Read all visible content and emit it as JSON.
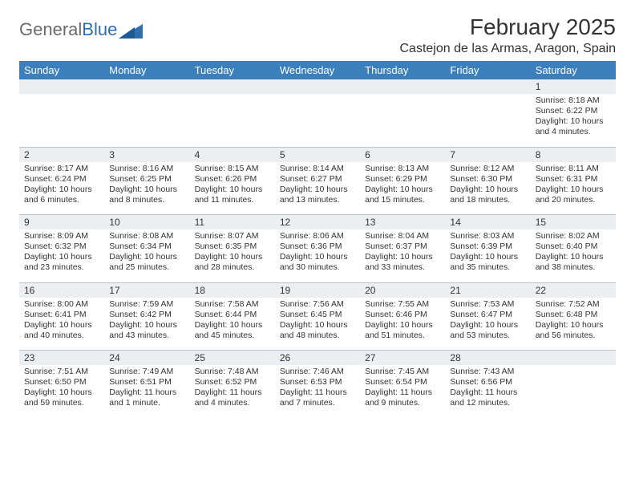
{
  "logo": {
    "word1": "General",
    "word2": "Blue"
  },
  "title": "February 2025",
  "subtitle": "Castejon de las Armas, Aragon, Spain",
  "colors": {
    "header_bg": "#3b7fbd",
    "header_text": "#ffffff",
    "daynum_bg": "#eceff1",
    "text": "#333333",
    "grid_line": "#b8c4cc",
    "logo_gray": "#6a6a6a",
    "logo_blue": "#2f6fb0",
    "background": "#ffffff"
  },
  "typography": {
    "title_fontsize": 28,
    "subtitle_fontsize": 16,
    "weekday_fontsize": 13,
    "daynum_fontsize": 12,
    "body_fontsize": 10.5
  },
  "weekdays": [
    "Sunday",
    "Monday",
    "Tuesday",
    "Wednesday",
    "Thursday",
    "Friday",
    "Saturday"
  ],
  "first_weekday_index": 6,
  "days": [
    {
      "n": 1,
      "sunrise": "8:18 AM",
      "sunset": "6:22 PM",
      "daylight": "10 hours and 4 minutes."
    },
    {
      "n": 2,
      "sunrise": "8:17 AM",
      "sunset": "6:24 PM",
      "daylight": "10 hours and 6 minutes."
    },
    {
      "n": 3,
      "sunrise": "8:16 AM",
      "sunset": "6:25 PM",
      "daylight": "10 hours and 8 minutes."
    },
    {
      "n": 4,
      "sunrise": "8:15 AM",
      "sunset": "6:26 PM",
      "daylight": "10 hours and 11 minutes."
    },
    {
      "n": 5,
      "sunrise": "8:14 AM",
      "sunset": "6:27 PM",
      "daylight": "10 hours and 13 minutes."
    },
    {
      "n": 6,
      "sunrise": "8:13 AM",
      "sunset": "6:29 PM",
      "daylight": "10 hours and 15 minutes."
    },
    {
      "n": 7,
      "sunrise": "8:12 AM",
      "sunset": "6:30 PM",
      "daylight": "10 hours and 18 minutes."
    },
    {
      "n": 8,
      "sunrise": "8:11 AM",
      "sunset": "6:31 PM",
      "daylight": "10 hours and 20 minutes."
    },
    {
      "n": 9,
      "sunrise": "8:09 AM",
      "sunset": "6:32 PM",
      "daylight": "10 hours and 23 minutes."
    },
    {
      "n": 10,
      "sunrise": "8:08 AM",
      "sunset": "6:34 PM",
      "daylight": "10 hours and 25 minutes."
    },
    {
      "n": 11,
      "sunrise": "8:07 AM",
      "sunset": "6:35 PM",
      "daylight": "10 hours and 28 minutes."
    },
    {
      "n": 12,
      "sunrise": "8:06 AM",
      "sunset": "6:36 PM",
      "daylight": "10 hours and 30 minutes."
    },
    {
      "n": 13,
      "sunrise": "8:04 AM",
      "sunset": "6:37 PM",
      "daylight": "10 hours and 33 minutes."
    },
    {
      "n": 14,
      "sunrise": "8:03 AM",
      "sunset": "6:39 PM",
      "daylight": "10 hours and 35 minutes."
    },
    {
      "n": 15,
      "sunrise": "8:02 AM",
      "sunset": "6:40 PM",
      "daylight": "10 hours and 38 minutes."
    },
    {
      "n": 16,
      "sunrise": "8:00 AM",
      "sunset": "6:41 PM",
      "daylight": "10 hours and 40 minutes."
    },
    {
      "n": 17,
      "sunrise": "7:59 AM",
      "sunset": "6:42 PM",
      "daylight": "10 hours and 43 minutes."
    },
    {
      "n": 18,
      "sunrise": "7:58 AM",
      "sunset": "6:44 PM",
      "daylight": "10 hours and 45 minutes."
    },
    {
      "n": 19,
      "sunrise": "7:56 AM",
      "sunset": "6:45 PM",
      "daylight": "10 hours and 48 minutes."
    },
    {
      "n": 20,
      "sunrise": "7:55 AM",
      "sunset": "6:46 PM",
      "daylight": "10 hours and 51 minutes."
    },
    {
      "n": 21,
      "sunrise": "7:53 AM",
      "sunset": "6:47 PM",
      "daylight": "10 hours and 53 minutes."
    },
    {
      "n": 22,
      "sunrise": "7:52 AM",
      "sunset": "6:48 PM",
      "daylight": "10 hours and 56 minutes."
    },
    {
      "n": 23,
      "sunrise": "7:51 AM",
      "sunset": "6:50 PM",
      "daylight": "10 hours and 59 minutes."
    },
    {
      "n": 24,
      "sunrise": "7:49 AM",
      "sunset": "6:51 PM",
      "daylight": "11 hours and 1 minute."
    },
    {
      "n": 25,
      "sunrise": "7:48 AM",
      "sunset": "6:52 PM",
      "daylight": "11 hours and 4 minutes."
    },
    {
      "n": 26,
      "sunrise": "7:46 AM",
      "sunset": "6:53 PM",
      "daylight": "11 hours and 7 minutes."
    },
    {
      "n": 27,
      "sunrise": "7:45 AM",
      "sunset": "6:54 PM",
      "daylight": "11 hours and 9 minutes."
    },
    {
      "n": 28,
      "sunrise": "7:43 AM",
      "sunset": "6:56 PM",
      "daylight": "11 hours and 12 minutes."
    }
  ],
  "labels": {
    "sunrise": "Sunrise:",
    "sunset": "Sunset:",
    "daylight": "Daylight:"
  }
}
